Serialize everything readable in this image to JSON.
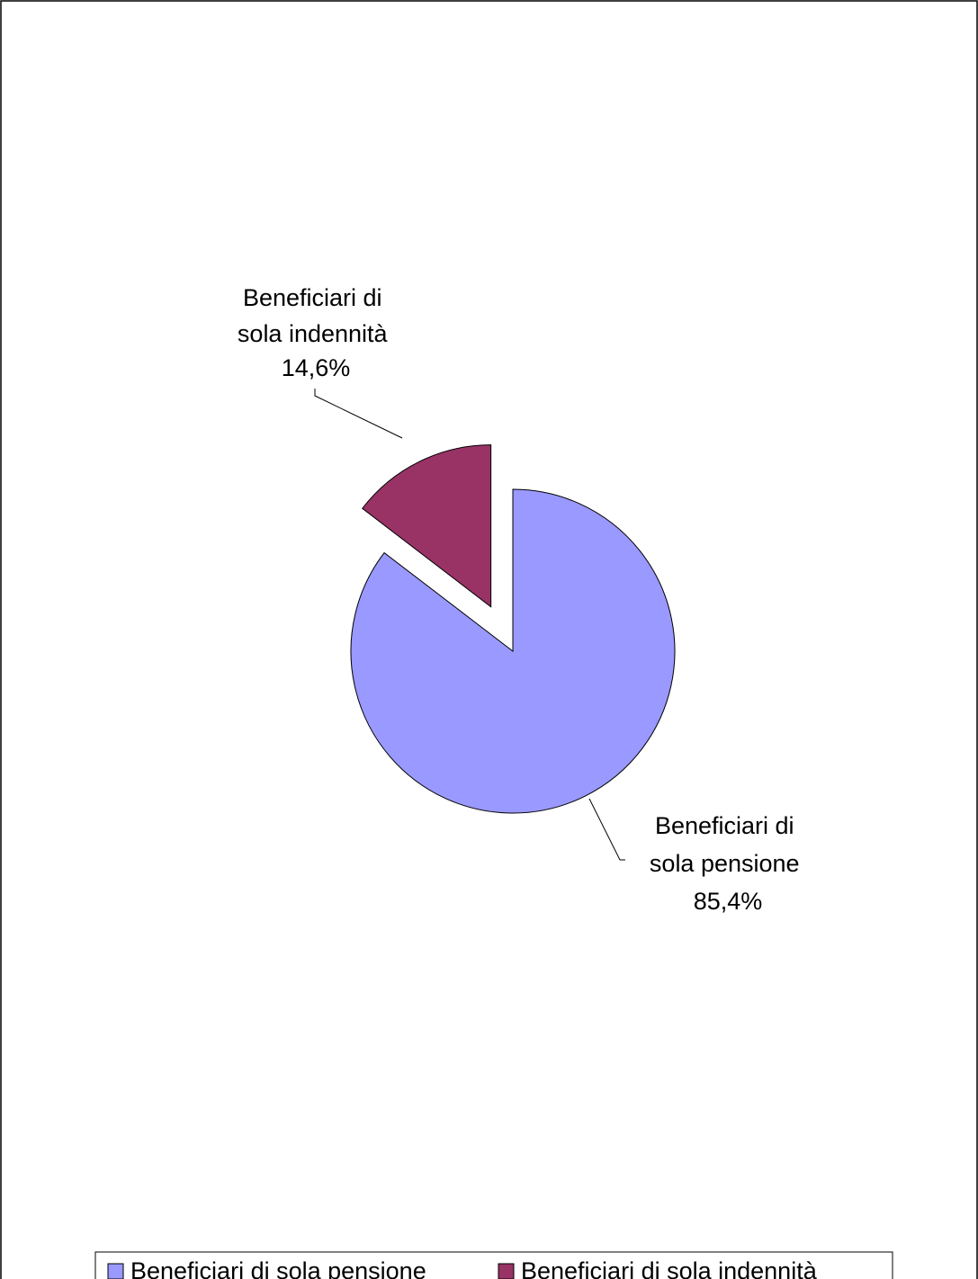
{
  "chart_data": {
    "type": "pie",
    "title": "",
    "categories": [
      "Beneficiari di sola pensione",
      "Beneficiari di sola indennità"
    ],
    "values": [
      85.4,
      14.6
    ],
    "value_labels": [
      "85,4%",
      "14,6%"
    ],
    "colors": [
      "#9999ff",
      "#993366"
    ],
    "exploded": [
      false,
      true
    ],
    "data_labels": [
      {
        "lines": [
          "Beneficiari di",
          "sola pensione",
          "85,4%"
        ]
      },
      {
        "lines": [
          "Beneficiari di",
          "sola indennità",
          "14,6%"
        ]
      }
    ],
    "legend": {
      "placement": "bottom",
      "entries": [
        "Beneficiari di sola pensione",
        "Beneficiari di sola indennità"
      ]
    },
    "grid": false
  }
}
